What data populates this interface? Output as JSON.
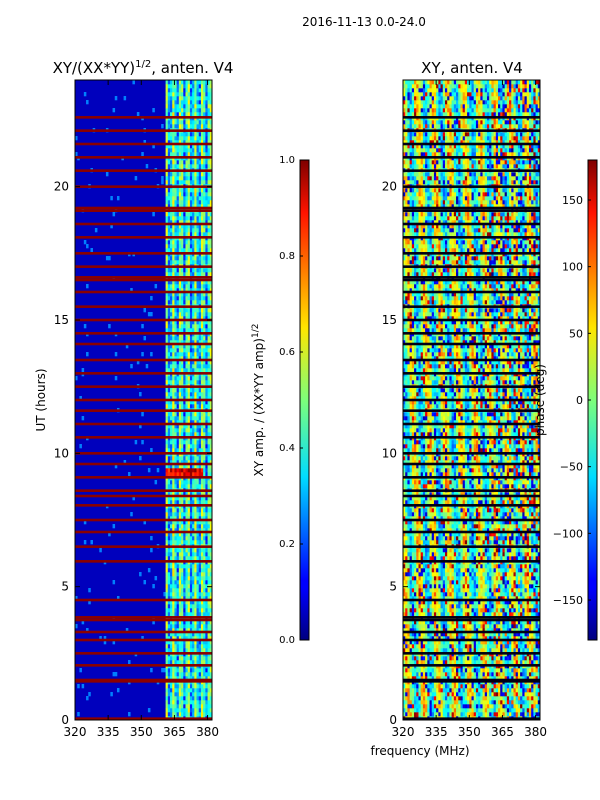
{
  "suptitle": "2016-11-13 0.0-24.0",
  "chart_data": [
    {
      "type": "heatmap",
      "title": "XY/(XX*YY)",
      "title_sup": "1/2",
      "title_suffix": ", anten. V4",
      "ylabel": "UT (hours)",
      "xticks": [
        320,
        335,
        350,
        365,
        380
      ],
      "yticks": [
        0,
        5,
        10,
        15,
        20
      ],
      "xlim": [
        320,
        382
      ],
      "ylim": [
        0,
        24
      ],
      "colorbar": {
        "label": "XY amp. / (XX*YY amp)",
        "label_sup": "1/2",
        "ticks": [
          "0.0",
          "0.2",
          "0.4",
          "0.6",
          "0.8",
          "1.0"
        ],
        "range": [
          0.0,
          1.0
        ]
      },
      "flagged_rows_hours": [
        0.05,
        1.45,
        1.5,
        2.05,
        2.5,
        3.0,
        3.3,
        3.75,
        3.85,
        4.5,
        5.95,
        6.5,
        7.05,
        7.5,
        8.05,
        8.4,
        8.6,
        9.1,
        9.6,
        10.0,
        10.6,
        11.1,
        11.6,
        12.0,
        12.5,
        13.0,
        13.5,
        14.1,
        14.5,
        15.0,
        15.5,
        16.05,
        16.5,
        16.6,
        17.0,
        17.5,
        18.1,
        18.6,
        19.1,
        19.2,
        20.0,
        20.6,
        21.1,
        21.6,
        22.1,
        22.6
      ],
      "active_band_mhz": [
        361,
        382
      ],
      "hot_region": {
        "mhz": [
          361,
          378
        ],
        "hours": [
          9.1,
          9.5
        ]
      }
    },
    {
      "type": "heatmap",
      "title": "XY, anten. V4",
      "xlabel": "frequency (MHz)",
      "xticks": [
        320,
        335,
        350,
        365,
        380
      ],
      "yticks": [
        0,
        5,
        10,
        15,
        20
      ],
      "xlim": [
        320,
        382
      ],
      "ylim": [
        0,
        24
      ],
      "colorbar": {
        "label": "phase (deg)",
        "ticks": [
          "150",
          "100",
          "50",
          "0",
          "−50",
          "−100",
          "−150"
        ],
        "tick_values": [
          150,
          100,
          50,
          0,
          -50,
          -100,
          -150
        ],
        "range": [
          -180,
          180
        ]
      },
      "flagged_rows_hours": [
        0.05,
        1.45,
        1.5,
        2.05,
        2.5,
        3.0,
        3.3,
        3.75,
        3.85,
        4.5,
        5.95,
        6.5,
        7.05,
        7.5,
        8.05,
        8.4,
        8.6,
        9.1,
        9.6,
        10.0,
        10.6,
        11.1,
        11.6,
        12.0,
        12.5,
        13.0,
        13.5,
        14.1,
        14.5,
        15.0,
        15.5,
        16.05,
        16.5,
        16.6,
        17.0,
        17.5,
        18.1,
        18.6,
        19.1,
        19.2,
        20.0,
        20.6,
        21.1,
        21.6,
        22.1,
        22.6
      ]
    }
  ]
}
